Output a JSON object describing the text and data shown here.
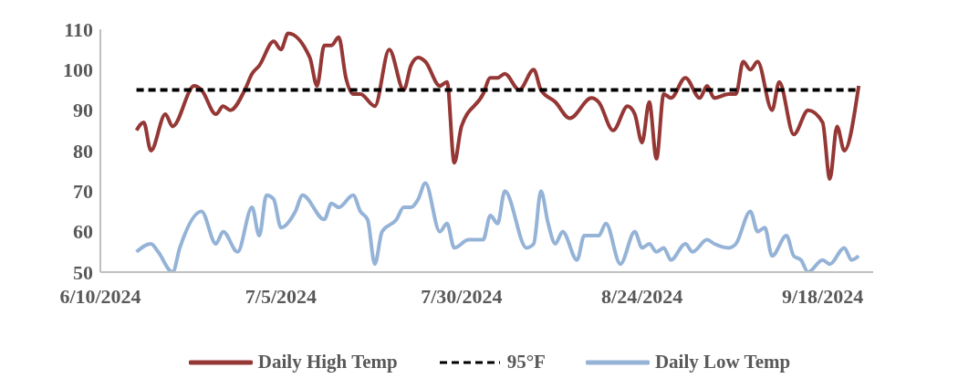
{
  "chart_data": {
    "type": "line",
    "series": [
      {
        "name": "Daily High Temp",
        "color": "#953735",
        "x": [
          "2024-06-15",
          "2024-06-16",
          "2024-06-17",
          "2024-06-19",
          "2024-06-20",
          "2024-06-23",
          "2024-06-24",
          "2024-06-26",
          "2024-06-27",
          "2024-06-28",
          "2024-06-30",
          "2024-07-01",
          "2024-07-02",
          "2024-07-04",
          "2024-07-05",
          "2024-07-06",
          "2024-07-09",
          "2024-07-10",
          "2024-07-11",
          "2024-07-12",
          "2024-07-13",
          "2024-07-14",
          "2024-07-15",
          "2024-07-16",
          "2024-07-18",
          "2024-07-20",
          "2024-07-22",
          "2024-07-23",
          "2024-07-24",
          "2024-07-25",
          "2024-07-27",
          "2024-07-28",
          "2024-07-29",
          "2024-07-30",
          "2024-08-02",
          "2024-08-03",
          "2024-08-04",
          "2024-08-05",
          "2024-08-07",
          "2024-08-09",
          "2024-08-10",
          "2024-08-12",
          "2024-08-14",
          "2024-08-17",
          "2024-08-18",
          "2024-08-20",
          "2024-08-22",
          "2024-08-23",
          "2024-08-24",
          "2024-08-25",
          "2024-08-26",
          "2024-08-27",
          "2024-08-28",
          "2024-08-30",
          "2024-09-01",
          "2024-09-02",
          "2024-09-03",
          "2024-09-05",
          "2024-09-06",
          "2024-09-07",
          "2024-09-08",
          "2024-09-09",
          "2024-09-11",
          "2024-09-12",
          "2024-09-14",
          "2024-09-16",
          "2024-09-18",
          "2024-09-19",
          "2024-09-20",
          "2024-09-21",
          "2024-09-23"
        ],
        "values": [
          85,
          87,
          80,
          89,
          86,
          96,
          95,
          89,
          91,
          90,
          95,
          99,
          101,
          107,
          105,
          109,
          103,
          96,
          106,
          106,
          108,
          98,
          94,
          94,
          91,
          105,
          95,
          101,
          103,
          102,
          96,
          97,
          77,
          86,
          94,
          98,
          98,
          99,
          95,
          100,
          95,
          92,
          88,
          93,
          92,
          85,
          91,
          89,
          82,
          92,
          78,
          94,
          93,
          98,
          93,
          96,
          93,
          94,
          94,
          102,
          100,
          102,
          90,
          97,
          84,
          90,
          87,
          73,
          86,
          80,
          96
        ]
      },
      {
        "name": "95°F",
        "color": "#000000",
        "line_style": "dashed",
        "x": [
          "2024-06-15",
          "2024-09-23"
        ],
        "values": [
          95,
          95
        ]
      },
      {
        "name": "Daily Low Temp",
        "color": "#95b3d7",
        "x": [
          "2024-06-15",
          "2024-06-17",
          "2024-06-18",
          "2024-06-20",
          "2024-06-21",
          "2024-06-24",
          "2024-06-26",
          "2024-06-27",
          "2024-06-29",
          "2024-07-01",
          "2024-07-02",
          "2024-07-03",
          "2024-07-04",
          "2024-07-05",
          "2024-07-07",
          "2024-07-08",
          "2024-07-11",
          "2024-07-12",
          "2024-07-13",
          "2024-07-15",
          "2024-07-16",
          "2024-07-17",
          "2024-07-18",
          "2024-07-19",
          "2024-07-21",
          "2024-07-22",
          "2024-07-23",
          "2024-07-24",
          "2024-07-25",
          "2024-07-27",
          "2024-07-28",
          "2024-07-29",
          "2024-07-31",
          "2024-08-02",
          "2024-08-03",
          "2024-08-04",
          "2024-08-05",
          "2024-08-08",
          "2024-08-09",
          "2024-08-10",
          "2024-08-11",
          "2024-08-12",
          "2024-08-13",
          "2024-08-15",
          "2024-08-16",
          "2024-08-18",
          "2024-08-19",
          "2024-08-21",
          "2024-08-23",
          "2024-08-24",
          "2024-08-25",
          "2024-08-26",
          "2024-08-27",
          "2024-08-28",
          "2024-08-30",
          "2024-08-31",
          "2024-09-02",
          "2024-09-03",
          "2024-09-05",
          "2024-09-06",
          "2024-09-08",
          "2024-09-09",
          "2024-09-10",
          "2024-09-11",
          "2024-09-13",
          "2024-09-14",
          "2024-09-15",
          "2024-09-16",
          "2024-09-18",
          "2024-09-19",
          "2024-09-21",
          "2024-09-22",
          "2024-09-23"
        ],
        "values": [
          55,
          57,
          55,
          50,
          56,
          65,
          57,
          60,
          55,
          66,
          59,
          69,
          68,
          61,
          65,
          69,
          63,
          67,
          66,
          69,
          65,
          63,
          52,
          60,
          63,
          66,
          66,
          68,
          72,
          60,
          62,
          56,
          58,
          58,
          64,
          62,
          70,
          56,
          57,
          70,
          62,
          57,
          60,
          53,
          59,
          59,
          62,
          52,
          60,
          56,
          57,
          55,
          56,
          53,
          57,
          55,
          58,
          57,
          56,
          57,
          65,
          60,
          61,
          54,
          59,
          54,
          53,
          50,
          53,
          52,
          56,
          53,
          54
        ]
      }
    ],
    "xlim": [
      "2024-06-10",
      "2024-09-25"
    ],
    "xticks": [
      {
        "value": "2024-06-10",
        "label": "6/10/2024"
      },
      {
        "value": "2024-07-05",
        "label": "7/5/2024"
      },
      {
        "value": "2024-07-30",
        "label": "7/30/2024"
      },
      {
        "value": "2024-08-24",
        "label": "8/24/2024"
      },
      {
        "value": "2024-09-18",
        "label": "9/18/2024"
      }
    ],
    "ylim": [
      50,
      110
    ],
    "yticks": [
      50,
      60,
      70,
      80,
      90,
      100,
      110
    ],
    "grid": false,
    "legend": "bottom",
    "marker": "none",
    "line_style": "solid"
  }
}
